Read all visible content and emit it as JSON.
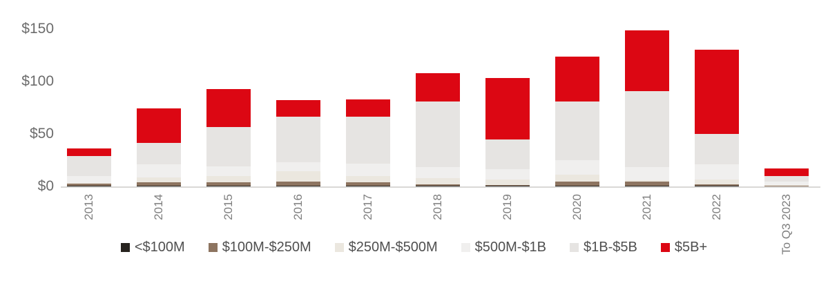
{
  "chart_data": {
    "type": "bar",
    "stacked": true,
    "title": "",
    "xlabel": "",
    "ylabel": "",
    "grid": false,
    "legend_position": "bottom",
    "ylim": [
      0,
      150
    ],
    "y_axis": {
      "tick_labels": [
        "$0",
        "$50",
        "$100",
        "$150"
      ],
      "tick_values": [
        0,
        50,
        100,
        150
      ]
    },
    "categories": [
      "2013",
      "2014",
      "2015",
      "2016",
      "2017",
      "2018",
      "2019",
      "2020",
      "2021",
      "2022",
      "To Q3 2023"
    ],
    "series": [
      {
        "name": "<$100M",
        "color": "#27231f",
        "values": [
          0.7,
          0.7,
          0.7,
          0.7,
          0.7,
          0.4,
          0.3,
          0.7,
          0.4,
          0.3,
          0.2
        ]
      },
      {
        "name": "$100M-$250M",
        "color": "#8d7460",
        "values": [
          2.0,
          3.2,
          3.2,
          3.9,
          3.2,
          1.7,
          1.0,
          3.9,
          4.5,
          1.7,
          0.5
        ]
      },
      {
        "name": "$250M-$500M",
        "color": "#ebe7df",
        "values": [
          0.6,
          4.6,
          5.9,
          9.8,
          5.9,
          5.7,
          5.2,
          6.5,
          0.8,
          4.5,
          0.7
        ]
      },
      {
        "name": "$500M-$1B",
        "color": "#f0efee",
        "values": [
          6.5,
          12.4,
          9.2,
          8.5,
          11.8,
          10.5,
          9.8,
          13.7,
          12.4,
          14.4,
          3.3
        ]
      },
      {
        "name": "$1B-$5B",
        "color": "#e6e4e2",
        "values": [
          19.0,
          20.3,
          37.9,
          43.8,
          45.1,
          62.7,
          28.1,
          56.2,
          72.6,
          29.4,
          5.2
        ]
      },
      {
        "name": "$5B+",
        "color": "#dc0713",
        "values": [
          7.7,
          33.3,
          35.9,
          15.7,
          16.3,
          26.8,
          58.9,
          42.5,
          57.7,
          79.8,
          7.1
        ]
      }
    ],
    "totals": [
      36.5,
      74.5,
      92.8,
      82.4,
      83.0,
      107.8,
      103.3,
      123.5,
      148.4,
      130.1,
      17.0
    ]
  },
  "colors": {
    "background": "#ffffff",
    "axis_line": "#d9d8d6",
    "y_tick_text": "#6c6c6c",
    "x_tick_text": "#7e7e7e",
    "legend_text": "#4f4f4f",
    "accent_red": "#dc0713"
  }
}
